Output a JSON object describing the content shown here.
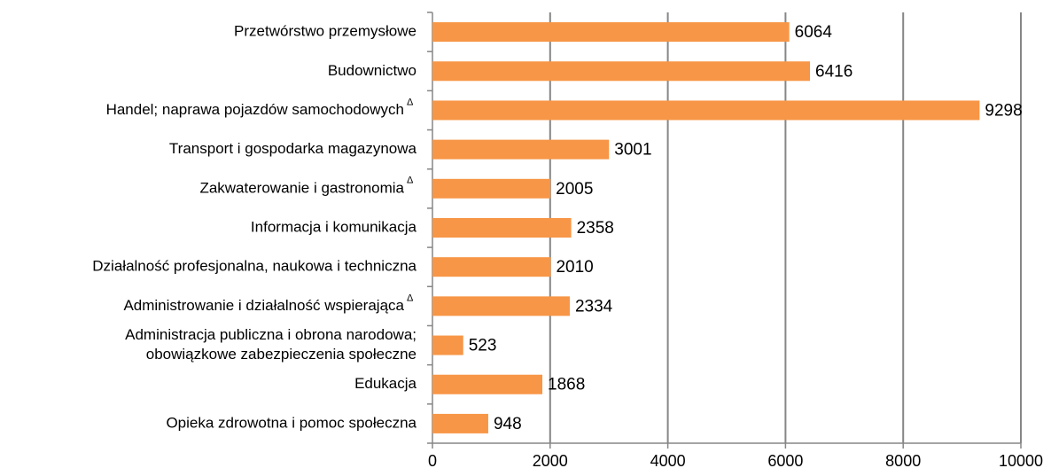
{
  "chart_data": {
    "type": "barh",
    "categories": [
      "Przetwórstwo przemysłowe",
      "Budownictwo",
      "Handel; naprawa pojazdów samochodowych",
      "Transport i gospodarka magazynowa",
      "Zakwaterowanie i gastronomia",
      "Informacja i komunikacja",
      "Działalność profesjonalna, naukowa i techniczna",
      "Administrowanie i działalność wspierająca",
      [
        "Administracja publiczna i obrona narodowa;",
        "obowiązkowe zabezpieczenia społeczne"
      ],
      "Edukacja",
      "Opieka zdrowotna i pomoc społeczna"
    ],
    "category_marks": [
      null,
      null,
      "Δ",
      null,
      "Δ",
      null,
      null,
      "Δ",
      null,
      null,
      null
    ],
    "values": [
      6064,
      6416,
      9298,
      3001,
      2005,
      2358,
      2010,
      2334,
      523,
      1868,
      948
    ],
    "color": "#f79646",
    "xlim": [
      0,
      10000
    ],
    "xticks": [
      0,
      2000,
      4000,
      6000,
      8000,
      10000
    ],
    "grid": true
  }
}
